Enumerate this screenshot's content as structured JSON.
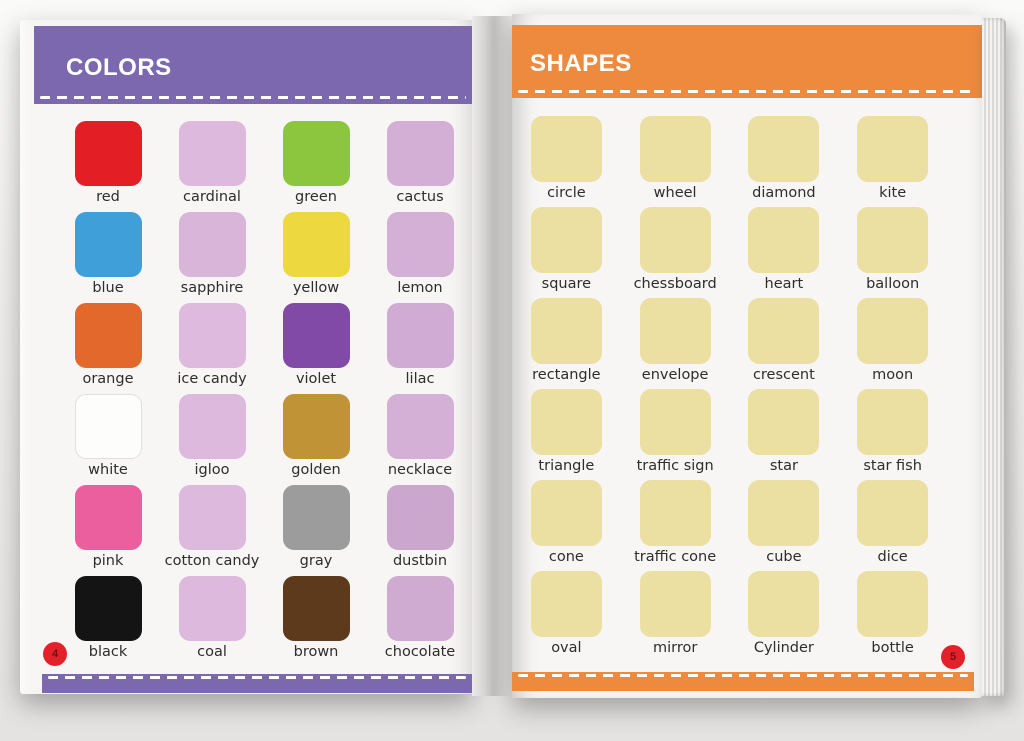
{
  "book": {
    "colors_page": {
      "title": "COLORS",
      "header_color": "#7c68ae",
      "page_number": "4",
      "badge_color": "#e3212b",
      "items": [
        {
          "label": "red",
          "color": "#e31e25"
        },
        {
          "label": "cardinal",
          "color": "#dcb9dd"
        },
        {
          "label": "green",
          "color": "#8cc63e"
        },
        {
          "label": "cactus",
          "color": "#d3aed5"
        },
        {
          "label": "blue",
          "color": "#3f9fd8"
        },
        {
          "label": "sapphire",
          "color": "#d9b5da"
        },
        {
          "label": "yellow",
          "color": "#edd83f"
        },
        {
          "label": "lemon",
          "color": "#d5b0d6"
        },
        {
          "label": "orange",
          "color": "#e2692b"
        },
        {
          "label": "ice candy",
          "color": "#ddbade"
        },
        {
          "label": "violet",
          "color": "#814aa6"
        },
        {
          "label": "lilac",
          "color": "#d0abd3"
        },
        {
          "label": "white",
          "color": "#fdfdfc",
          "bordered": true
        },
        {
          "label": "igloo",
          "color": "#dcb9dd"
        },
        {
          "label": "golden",
          "color": "#bf9336"
        },
        {
          "label": "necklace",
          "color": "#d4afd6"
        },
        {
          "label": "pink",
          "color": "#ec5f9f"
        },
        {
          "label": "cotton candy",
          "color": "#dcb9dd"
        },
        {
          "label": "gray",
          "color": "#9c9c9c"
        },
        {
          "label": "dustbin",
          "color": "#cba7ce"
        },
        {
          "label": "black",
          "color": "#141414"
        },
        {
          "label": "coal",
          "color": "#dcb9dd"
        },
        {
          "label": "brown",
          "color": "#5e3a1d"
        },
        {
          "label": "chocolate",
          "color": "#cfaad1"
        }
      ]
    },
    "shapes_page": {
      "title": "SHAPES",
      "header_color": "#ee8a3e",
      "page_number": "5",
      "badge_color": "#e3212b",
      "items": [
        {
          "label": "circle",
          "color": "#ecdfa2"
        },
        {
          "label": "wheel",
          "color": "#ecdfa2"
        },
        {
          "label": "diamond",
          "color": "#ecdfa2"
        },
        {
          "label": "kite",
          "color": "#ecdfa2"
        },
        {
          "label": "square",
          "color": "#ecdfa2"
        },
        {
          "label": "chessboard",
          "color": "#ecdfa2"
        },
        {
          "label": "heart",
          "color": "#ecdfa2"
        },
        {
          "label": "balloon",
          "color": "#ecdfa2"
        },
        {
          "label": "rectangle",
          "color": "#ecdfa2"
        },
        {
          "label": "envelope",
          "color": "#ecdfa2"
        },
        {
          "label": "crescent",
          "color": "#ecdfa2"
        },
        {
          "label": "moon",
          "color": "#ecdfa2"
        },
        {
          "label": "triangle",
          "color": "#ecdfa2"
        },
        {
          "label": "traffic sign",
          "color": "#ecdfa2"
        },
        {
          "label": "star",
          "color": "#ecdfa2"
        },
        {
          "label": "star fish",
          "color": "#ecdfa2"
        },
        {
          "label": "cone",
          "color": "#ecdfa2"
        },
        {
          "label": "traffic cone",
          "color": "#ecdfa2"
        },
        {
          "label": "cube",
          "color": "#ecdfa2"
        },
        {
          "label": "dice",
          "color": "#ecdfa2"
        },
        {
          "label": "oval",
          "color": "#ecdfa2"
        },
        {
          "label": "mirror",
          "color": "#ecdfa2"
        },
        {
          "label": "Cylinder",
          "color": "#ecdfa2"
        },
        {
          "label": "bottle",
          "color": "#ecdfa2"
        }
      ]
    }
  }
}
